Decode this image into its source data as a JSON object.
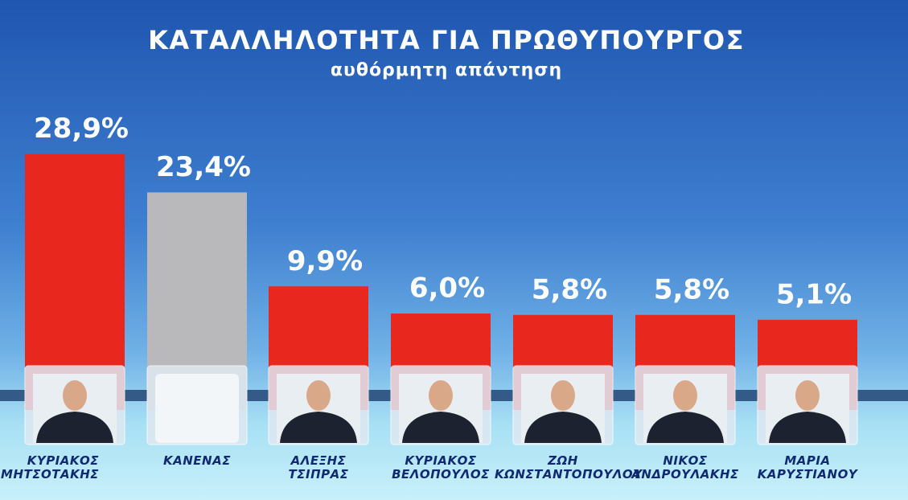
{
  "chart_data": {
    "type": "bar",
    "title": "ΚΑΤΑΛΛΗΛΟΤΗΤΑ  ΓΙΑ  ΠΡΩΘΥΠΟΥΡΓΟΣ",
    "subtitle": "αυθόρμητη  απάντηση",
    "categories": [
      "ΚΥΡΙΑΚΟΣ\nΜΗΤΣΟΤΑΚΗΣ",
      "ΚΑΝΕΝΑΣ",
      "ΑΛΕΞΗΣ\nΤΣΙΠΡΑΣ",
      "ΚΥΡΙΑΚΟΣ\nΒΕΛΟΠΟΥΛΟΣ",
      "ΖΩΗ\nΚΩΝΣΤΑΝΤΟΠΟΥΛΟΥ",
      "ΝΙΚΟΣ\nΑΝΔΡΟΥΛΑΚΗΣ",
      "ΜΑΡΙΑ\nΚΑΡΥΣΤΙΑΝΟΥ"
    ],
    "values": [
      28.9,
      23.4,
      9.9,
      6.0,
      5.8,
      5.8,
      5.1
    ],
    "value_labels": [
      "28,9%",
      "23,4%",
      "9,9%",
      "6,0%",
      "5,8%",
      "5,8%",
      "5,1%"
    ],
    "colors": [
      "#e8271e",
      "#b9b9bb",
      "#e8271e",
      "#e8271e",
      "#e8271e",
      "#e8271e",
      "#e8271e"
    ]
  }
}
